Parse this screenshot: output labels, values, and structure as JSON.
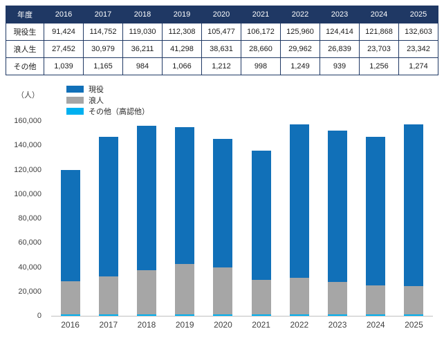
{
  "table": {
    "header_label": "年度",
    "years": [
      "2016",
      "2017",
      "2018",
      "2019",
      "2020",
      "2021",
      "2022",
      "2023",
      "2024",
      "2025"
    ],
    "rows": [
      {
        "label": "現役生",
        "values": [
          "91,424",
          "114,752",
          "119,030",
          "112,308",
          "105,477",
          "106,172",
          "125,960",
          "124,414",
          "121,868",
          "132,603"
        ]
      },
      {
        "label": "浪人生",
        "values": [
          "27,452",
          "30,979",
          "36,211",
          "41,298",
          "38,631",
          "28,660",
          "29,962",
          "26,839",
          "23,703",
          "23,342"
        ]
      },
      {
        "label": "その他",
        "values": [
          "1,039",
          "1,165",
          "984",
          "1,066",
          "1,212",
          "998",
          "1,249",
          "939",
          "1,256",
          "1,274"
        ]
      }
    ]
  },
  "chart_data": {
    "type": "bar",
    "stacked": true,
    "title": "",
    "unit_label": "（人）",
    "categories": [
      "2016",
      "2017",
      "2018",
      "2019",
      "2020",
      "2021",
      "2022",
      "2023",
      "2024",
      "2025"
    ],
    "series": [
      {
        "name": "現役",
        "color": "#1170b8",
        "values": [
          91424,
          114752,
          119030,
          112308,
          105477,
          106172,
          125960,
          124414,
          121868,
          132603
        ]
      },
      {
        "name": "浪人",
        "color": "#a6a6a6",
        "values": [
          27452,
          30979,
          36211,
          41298,
          38631,
          28660,
          29962,
          26839,
          23703,
          23342
        ]
      },
      {
        "name": "その他（高認他）",
        "color": "#00b0f0",
        "values": [
          1039,
          1165,
          984,
          1066,
          1212,
          998,
          1249,
          939,
          1256,
          1274
        ]
      }
    ],
    "stack_order_bottom_to_top": [
      "その他（高認他）",
      "浪人",
      "現役"
    ],
    "ylim": [
      0,
      160000
    ],
    "ytick_step": 20000,
    "yticks": [
      "0",
      "20,000",
      "40,000",
      "60,000",
      "80,000",
      "100,000",
      "120,000",
      "140,000",
      "160,000"
    ],
    "legend_position": "top-left",
    "grid": false
  },
  "colors": {
    "table_header_bg": "#1f3864",
    "table_border": "#1f3864",
    "axis_line": "#bfbfbf"
  }
}
